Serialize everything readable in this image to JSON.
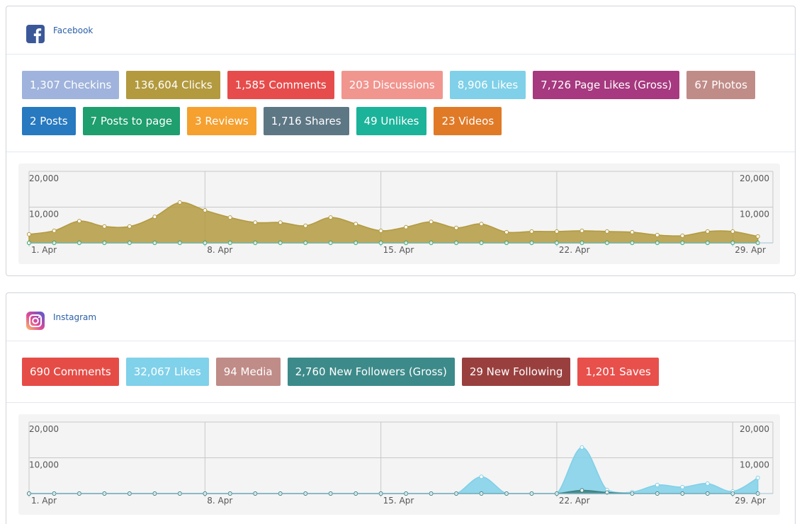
{
  "panels": [
    {
      "title": "Facebook",
      "badges": [
        {
          "text": "1,307 Checkins",
          "color": "#9fb3dc"
        },
        {
          "text": "136,604 Clicks",
          "color": "#b39a3f"
        },
        {
          "text": "1,585 Comments",
          "color": "#e74c4c"
        },
        {
          "text": "203 Discussions",
          "color": "#f1958f"
        },
        {
          "text": "8,906 Likes",
          "color": "#7fd0e8"
        },
        {
          "text": "7,726 Page Likes (Gross)",
          "color": "#a6397f"
        },
        {
          "text": "67 Photos",
          "color": "#c08c88"
        },
        {
          "text": "2 Posts",
          "color": "#2779c0"
        },
        {
          "text": "7 Posts to page",
          "color": "#1f9e6e"
        },
        {
          "text": "3 Reviews",
          "color": "#f5a02f"
        },
        {
          "text": "1,716 Shares",
          "color": "#5e7785"
        },
        {
          "text": "49 Unlikes",
          "color": "#1bb39a"
        },
        {
          "text": "23 Videos",
          "color": "#e07a27"
        }
      ],
      "chart": {
        "type": "area",
        "x": [
          1,
          2,
          3,
          4,
          5,
          6,
          7,
          8,
          9,
          10,
          11,
          12,
          13,
          14,
          15,
          16,
          17,
          18,
          19,
          20,
          21,
          22,
          23,
          24,
          25,
          26,
          27,
          28,
          29,
          30
        ],
        "xlim": [
          1,
          30.6
        ],
        "xticks": [
          {
            "value": 1,
            "label": "1. Apr"
          },
          {
            "value": 8,
            "label": "8. Apr"
          },
          {
            "value": 15,
            "label": "15. Apr"
          },
          {
            "value": 22,
            "label": "22. Apr"
          },
          {
            "value": 29,
            "label": "29. Apr"
          }
        ],
        "ylim": [
          0,
          20000
        ],
        "yticks": [
          {
            "value": 10000,
            "label": "10,000"
          },
          {
            "value": 20000,
            "label": "20,000"
          }
        ],
        "grid": true,
        "series": [
          {
            "color": "#b39a3f",
            "values": [
              2400,
              3400,
              6100,
              4600,
              4600,
              7300,
              11300,
              9100,
              7100,
              5700,
              5700,
              4800,
              7100,
              5300,
              3400,
              4400,
              5900,
              4200,
              5300,
              3000,
              3200,
              3200,
              3400,
              3200,
              3000,
              2200,
              2000,
              3200,
              3200,
              1800
            ]
          },
          {
            "color": "#2a9d5c",
            "values": [
              0,
              0,
              0,
              0,
              0,
              0,
              0,
              0,
              0,
              0,
              0,
              0,
              0,
              0,
              0,
              0,
              0,
              0,
              0,
              0,
              0,
              0,
              0,
              0,
              0,
              0,
              0,
              0,
              0,
              0
            ]
          }
        ]
      }
    },
    {
      "title": "Instagram",
      "badges": [
        {
          "text": "690 Comments",
          "color": "#e64c46"
        },
        {
          "text": "32,067 Likes",
          "color": "#80d1ea"
        },
        {
          "text": "94 Media",
          "color": "#c08c88"
        },
        {
          "text": "2,760 New Followers (Gross)",
          "color": "#3d8a8a"
        },
        {
          "text": "29 New Following",
          "color": "#99403f"
        },
        {
          "text": "1,201 Saves",
          "color": "#e8504c"
        }
      ],
      "chart": {
        "type": "area",
        "x": [
          1,
          2,
          3,
          4,
          5,
          6,
          7,
          8,
          9,
          10,
          11,
          12,
          13,
          14,
          15,
          16,
          17,
          18,
          19,
          20,
          21,
          22,
          23,
          24,
          25,
          26,
          27,
          28,
          29,
          30
        ],
        "xlim": [
          1,
          30.6
        ],
        "xticks": [
          {
            "value": 1,
            "label": "1. Apr"
          },
          {
            "value": 8,
            "label": "8. Apr"
          },
          {
            "value": 15,
            "label": "15. Apr"
          },
          {
            "value": 22,
            "label": "22. Apr"
          },
          {
            "value": 29,
            "label": "29. Apr"
          }
        ],
        "ylim": [
          0,
          20000
        ],
        "yticks": [
          {
            "value": 10000,
            "label": "10,000"
          },
          {
            "value": 20000,
            "label": "20,000"
          }
        ],
        "grid": true,
        "series": [
          {
            "color": "#7fd0e8",
            "values": [
              0,
              0,
              0,
              0,
              0,
              0,
              0,
              0,
              0,
              0,
              0,
              0,
              0,
              0,
              0,
              0,
              0,
              0,
              4700,
              0,
              0,
              0,
              12900,
              1000,
              400,
              2400,
              1800,
              2800,
              600,
              4400
            ]
          },
          {
            "color": "#3d7f7c",
            "values": [
              0,
              0,
              0,
              0,
              0,
              0,
              0,
              0,
              0,
              0,
              0,
              0,
              0,
              0,
              0,
              0,
              0,
              0,
              0,
              0,
              0,
              0,
              900,
              300,
              0,
              0,
              0,
              0,
              0,
              0
            ]
          }
        ]
      }
    }
  ]
}
